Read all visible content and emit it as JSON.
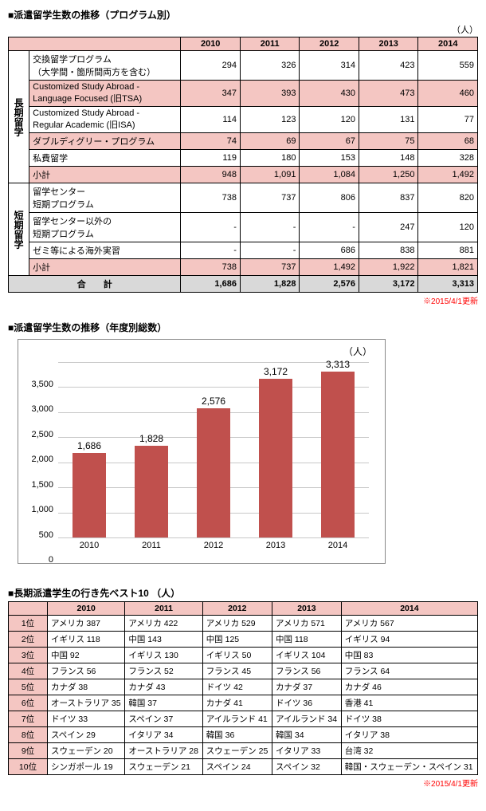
{
  "section1": {
    "title": "■派遣留学生数の推移（プログラム別）",
    "unit": "（人）",
    "years": [
      "2010",
      "2011",
      "2012",
      "2013",
      "2014"
    ],
    "groups": [
      {
        "label": "長期留学",
        "rows": [
          {
            "name": "交換留学プログラム\n（大学間・箇所間両方を含む）",
            "vals": [
              "294",
              "326",
              "314",
              "423",
              "559"
            ]
          },
          {
            "name": "Customized Study Abroad -\nLanguage Focused (旧TSA)",
            "vals": [
              "347",
              "393",
              "430",
              "473",
              "460"
            ],
            "shade": true
          },
          {
            "name": "Customized Study Abroad -\nRegular Academic (旧ISA)",
            "vals": [
              "114",
              "123",
              "120",
              "131",
              "77"
            ]
          },
          {
            "name": "ダブルディグリー・プログラム",
            "vals": [
              "74",
              "69",
              "67",
              "75",
              "68"
            ],
            "shade": true
          },
          {
            "name": "私費留学",
            "vals": [
              "119",
              "180",
              "153",
              "148",
              "328"
            ]
          },
          {
            "name": "小計",
            "vals": [
              "948",
              "1,091",
              "1,084",
              "1,250",
              "1,492"
            ],
            "shade": true
          }
        ]
      },
      {
        "label": "短期留学",
        "rows": [
          {
            "name": "留学センター\n短期プログラム",
            "vals": [
              "738",
              "737",
              "806",
              "837",
              "820"
            ]
          },
          {
            "name": "留学センター以外の\n短期プログラム",
            "vals": [
              "-",
              "-",
              "-",
              "247",
              "120"
            ]
          },
          {
            "name": "ゼミ等による海外実習",
            "vals": [
              "-",
              "-",
              "686",
              "838",
              "881"
            ]
          },
          {
            "name": "小計",
            "vals": [
              "738",
              "737",
              "1,492",
              "1,922",
              "1,821"
            ],
            "shade": true
          }
        ]
      }
    ],
    "total": {
      "label": "合　　計",
      "vals": [
        "1,686",
        "1,828",
        "2,576",
        "3,172",
        "3,313"
      ]
    },
    "update": "※2015/4/1更新"
  },
  "chart": {
    "title": "■派遣留学生数の推移（年度別総数）",
    "unit": "（人）",
    "categories": [
      "2010",
      "2011",
      "2012",
      "2013",
      "2014"
    ],
    "values": [
      1686,
      1828,
      2576,
      3172,
      3313
    ],
    "ymax": 3500,
    "ystep": 500,
    "bar_color": "#c0504d",
    "grid_color": "#c8c8c8",
    "bg": "#ffffff"
  },
  "section3": {
    "title": "■長期派遣学生の行き先ベスト10 （人）",
    "years": [
      "2010",
      "2011",
      "2012",
      "2013",
      "2014"
    ],
    "ranks": [
      "1位",
      "2位",
      "3位",
      "4位",
      "5位",
      "6位",
      "7位",
      "8位",
      "9位",
      "10位"
    ],
    "rows": [
      [
        "アメリカ 387",
        "アメリカ 422",
        "アメリカ 529",
        "アメリカ 571",
        "アメリカ 567"
      ],
      [
        "イギリス 118",
        "中国 143",
        "中国 125",
        "中国 118",
        "イギリス 94"
      ],
      [
        "中国 92",
        "イギリス 130",
        "イギリス 50",
        "イギリス 104",
        "中国 83"
      ],
      [
        "フランス 56",
        "フランス 52",
        "フランス 45",
        "フランス 56",
        "フランス 64"
      ],
      [
        "カナダ 38",
        "カナダ 43",
        "ドイツ 42",
        "カナダ 37",
        "カナダ 46"
      ],
      [
        "オーストラリア 35",
        "韓国 37",
        "カナダ 41",
        "ドイツ 36",
        "香港 41"
      ],
      [
        "ドイツ 33",
        "スペイン 37",
        "アイルランド 41",
        "アイルランド 34",
        "ドイツ 38"
      ],
      [
        "スペイン 29",
        "イタリア 34",
        "韓国 36",
        "韓国 34",
        "イタリア 38"
      ],
      [
        "スウェーデン 20",
        "オーストラリア 28",
        "スウェーデン 25",
        "イタリア 33",
        "台湾 32"
      ],
      [
        "シンガポール 19",
        "スウェーデン 21",
        "スペイン 24",
        "スペイン 32",
        "韓国・スウェーデン・スペイン 31"
      ]
    ],
    "update": "※2015/4/1更新"
  }
}
